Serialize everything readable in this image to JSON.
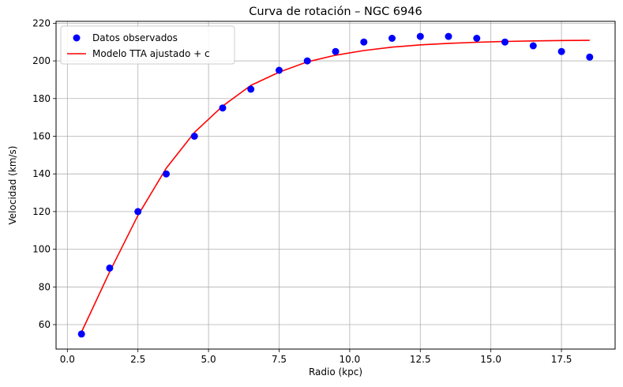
{
  "chart_data": {
    "type": "line",
    "title": "Curva de rotación – NGC 6946",
    "xlabel": "Radio (kpc)",
    "ylabel": "Velocidad (km/s)",
    "xlim": [
      -0.4,
      19.4
    ],
    "ylim": [
      47,
      221
    ],
    "xticks": [
      0.0,
      2.5,
      5.0,
      7.5,
      10.0,
      12.5,
      15.0,
      17.5
    ],
    "xtick_labels": [
      "0.0",
      "2.5",
      "5.0",
      "7.5",
      "10.0",
      "12.5",
      "15.0",
      "17.5"
    ],
    "yticks": [
      60,
      80,
      100,
      120,
      140,
      160,
      180,
      200,
      220
    ],
    "ytick_labels": [
      "60",
      "80",
      "100",
      "120",
      "140",
      "160",
      "180",
      "200",
      "220"
    ],
    "grid": true,
    "legend_position": "top-left",
    "series": [
      {
        "name": "Datos observados",
        "kind": "scatter",
        "color": "#0000ff",
        "x": [
          0.5,
          1.5,
          2.5,
          3.5,
          4.5,
          5.5,
          6.5,
          7.5,
          8.5,
          9.5,
          10.5,
          11.5,
          12.5,
          13.5,
          14.5,
          15.5,
          16.5,
          17.5,
          18.5
        ],
        "y": [
          55,
          90,
          120,
          140,
          160,
          175,
          185,
          195,
          200,
          205,
          210,
          212,
          213,
          213,
          212,
          210,
          208,
          205,
          202
        ]
      },
      {
        "name": "Modelo TTA ajustado + c",
        "kind": "line",
        "color": "#ff0000",
        "x": [
          0.5,
          1.5,
          2.5,
          3.5,
          4.5,
          5.5,
          6.5,
          7.5,
          8.5,
          9.5,
          10.5,
          11.5,
          12.5,
          13.5,
          14.5,
          15.5,
          16.5,
          17.5,
          18.5
        ],
        "y": [
          56,
          88,
          118,
          143,
          162,
          176,
          187,
          194,
          199.5,
          203,
          205.5,
          207.3,
          208.5,
          209.3,
          209.9,
          210.3,
          210.6,
          210.8,
          210.9
        ]
      }
    ]
  }
}
